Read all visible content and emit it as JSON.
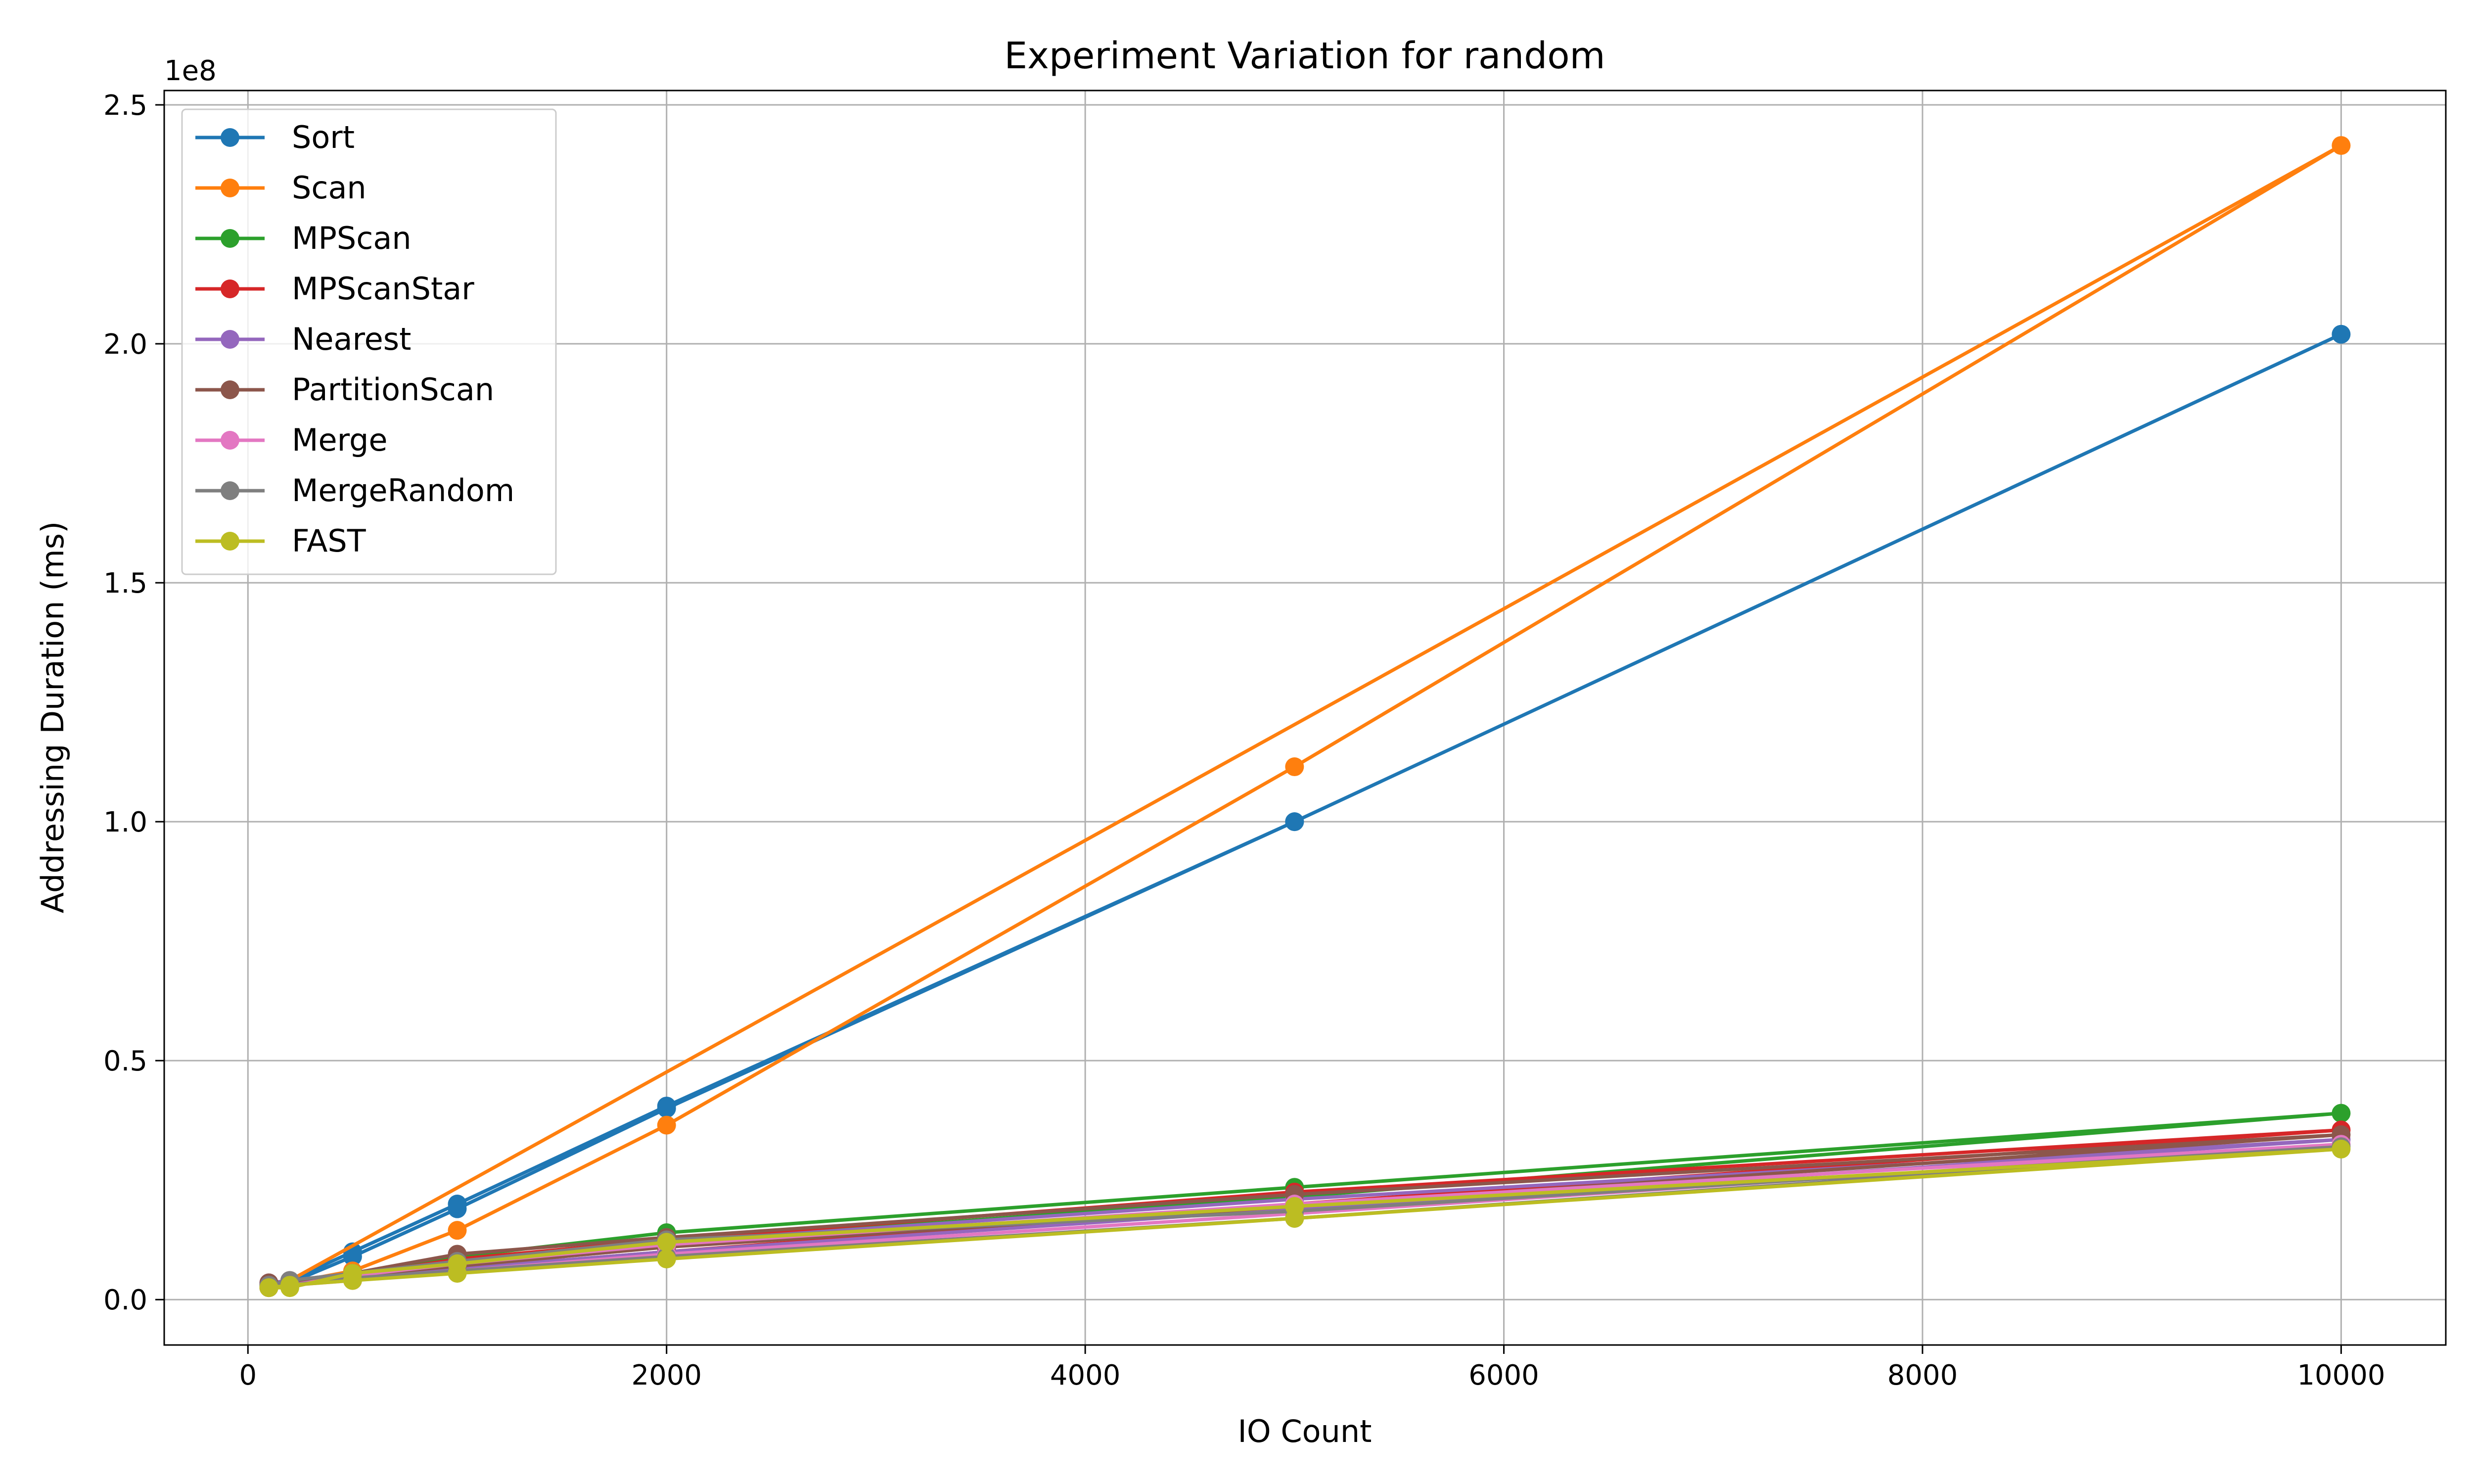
{
  "chart_data": {
    "type": "line",
    "title": "Experiment Variation for random",
    "xlabel": "IO Count",
    "ylabel": "Addressing Duration (ms)",
    "y_offset_label": "1e8",
    "xlim": [
      -400,
      10500
    ],
    "ylim": [
      -0.095,
      2.53
    ],
    "xticks": [
      0,
      2000,
      4000,
      6000,
      8000,
      10000
    ],
    "xtick_labels": [
      "0",
      "2000",
      "4000",
      "6000",
      "8000",
      "10000"
    ],
    "yticks": [
      0.0,
      0.5,
      1.0,
      1.5,
      2.0,
      2.5
    ],
    "ytick_labels": [
      "0.0",
      "0.5",
      "1.0",
      "1.5",
      "2.0",
      "2.5"
    ],
    "y_units": "×1e8 ms",
    "grid": true,
    "legend_position": "top-left",
    "series": [
      {
        "name": "Sort",
        "color": "#1f77b4",
        "x": [
          100,
          200,
          500,
          1000,
          2000,
          5000,
          10000,
          5000,
          2000,
          1000,
          500,
          200,
          100
        ],
        "y": [
          0.03,
          0.04,
          0.1,
          0.2,
          0.405,
          1.0,
          2.02,
          1.0,
          0.4,
          0.19,
          0.09,
          0.035,
          0.025
        ]
      },
      {
        "name": "Scan",
        "color": "#ff7f0e",
        "x": [
          100,
          200,
          500,
          1000,
          2000,
          5000,
          10000,
          200,
          100
        ],
        "y": [
          0.025,
          0.035,
          0.06,
          0.145,
          0.365,
          1.115,
          2.415,
          0.04,
          0.025
        ]
      },
      {
        "name": "MPScan",
        "color": "#2ca02c",
        "x": [
          100,
          200,
          500,
          1000,
          2000,
          5000,
          10000,
          5000,
          2000,
          1000,
          500,
          200,
          100
        ],
        "y": [
          0.03,
          0.035,
          0.055,
          0.09,
          0.14,
          0.235,
          0.39,
          0.215,
          0.12,
          0.075,
          0.05,
          0.035,
          0.03
        ]
      },
      {
        "name": "MPScanStar",
        "color": "#d62728",
        "x": [
          100,
          200,
          500,
          1000,
          2000,
          5000,
          10000,
          5000,
          2000,
          1000,
          500,
          200,
          100
        ],
        "y": [
          0.035,
          0.035,
          0.05,
          0.085,
          0.125,
          0.225,
          0.355,
          0.2,
          0.1,
          0.065,
          0.045,
          0.03,
          0.03
        ]
      },
      {
        "name": "Nearest",
        "color": "#9467bd",
        "x": [
          100,
          200,
          500,
          1000,
          2000,
          5000,
          10000,
          5000,
          2000,
          1000,
          500,
          200,
          100
        ],
        "y": [
          0.035,
          0.04,
          0.055,
          0.08,
          0.12,
          0.21,
          0.335,
          0.19,
          0.1,
          0.065,
          0.045,
          0.035,
          0.03
        ]
      },
      {
        "name": "PartitionScan",
        "color": "#8c564b",
        "x": [
          100,
          200,
          500,
          1000,
          2000,
          5000,
          10000,
          5000,
          2000,
          1000,
          500,
          200,
          100
        ],
        "y": [
          0.035,
          0.035,
          0.055,
          0.095,
          0.13,
          0.22,
          0.345,
          0.195,
          0.11,
          0.07,
          0.05,
          0.035,
          0.03
        ]
      },
      {
        "name": "Merge",
        "color": "#e377c2",
        "x": [
          100,
          200,
          500,
          1000,
          2000,
          5000,
          10000,
          5000,
          2000,
          1000,
          500,
          200,
          100
        ],
        "y": [
          0.025,
          0.03,
          0.05,
          0.075,
          0.115,
          0.2,
          0.325,
          0.18,
          0.095,
          0.06,
          0.04,
          0.03,
          0.025
        ]
      },
      {
        "name": "MergeRandom",
        "color": "#7f7f7f",
        "x": [
          100,
          200,
          500,
          1000,
          2000,
          5000,
          10000,
          5000,
          2000,
          1000,
          500,
          200,
          100
        ],
        "y": [
          0.03,
          0.04,
          0.055,
          0.08,
          0.125,
          0.185,
          0.32,
          0.17,
          0.09,
          0.06,
          0.045,
          0.03,
          0.025
        ]
      },
      {
        "name": "FAST",
        "color": "#bcbd22",
        "x": [
          100,
          200,
          500,
          1000,
          2000,
          5000,
          10000,
          5000,
          2000,
          1000,
          500,
          200,
          100
        ],
        "y": [
          0.025,
          0.025,
          0.055,
          0.075,
          0.12,
          0.195,
          0.315,
          0.17,
          0.085,
          0.055,
          0.04,
          0.03,
          0.025
        ]
      }
    ]
  }
}
